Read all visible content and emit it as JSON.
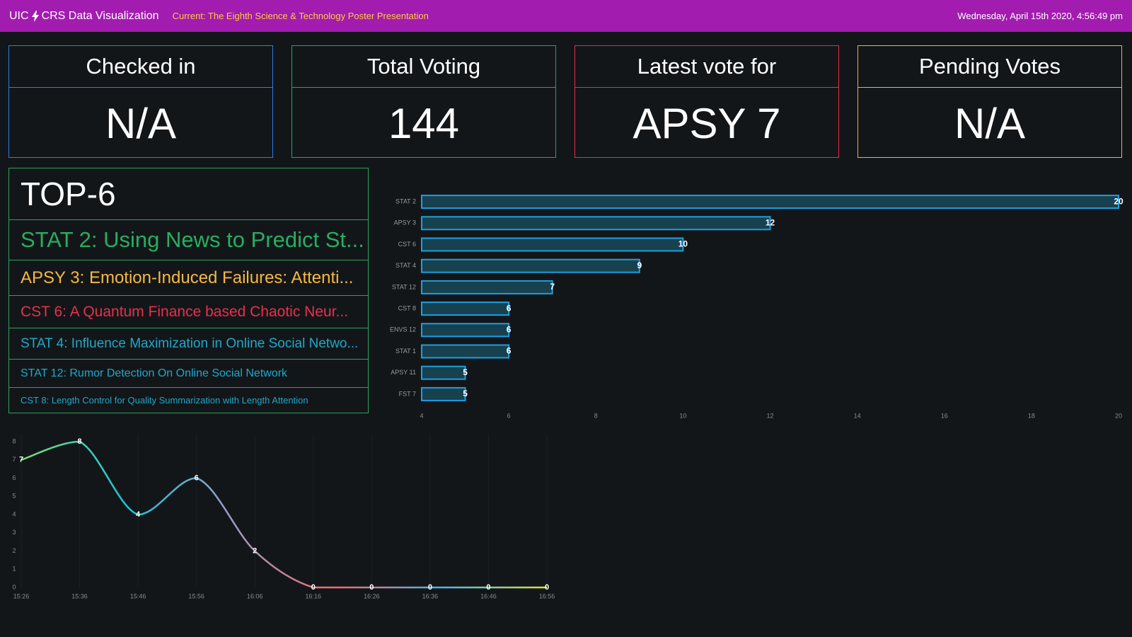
{
  "header": {
    "brand": "UIC",
    "app_name": "CRS Data Visualization",
    "current": "Current: The Eighth Science & Technology Poster Presentation",
    "datetime": "Wednesday, April 15th 2020, 4:56:49 pm"
  },
  "cards": [
    {
      "title": "Checked in",
      "value": "N/A",
      "color": "#2f7de1"
    },
    {
      "title": "Total Voting",
      "value": "144",
      "color": "#2aa35a"
    },
    {
      "title": "Latest vote for",
      "value": "APSY 7",
      "color": "#e0304a"
    },
    {
      "title": "Pending Votes",
      "value": "N/A",
      "color": "#f0b040"
    }
  ],
  "top_list": {
    "title": "TOP-6",
    "border_color": "#2aa35a",
    "items": [
      {
        "text": "STAT 2: Using News to Predict St...",
        "color": "#27ae60"
      },
      {
        "text": "APSY 3: Emotion-Induced Failures: Attenti...",
        "color": "#f5b942"
      },
      {
        "text": "CST 6: A Quantum Finance based Chaotic Neur...",
        "color": "#e8304c"
      },
      {
        "text": "STAT 4: Influence Maximization in Online Social Netwo...",
        "color": "#20a8c8"
      },
      {
        "text": "STAT 12: Rumor Detection On Online Social Network",
        "color": "#20a8c8"
      },
      {
        "text": "CST 8: Length Control for Quality Summarization with Length Attention",
        "color": "#20a8c8"
      }
    ]
  },
  "chart_data": [
    {
      "type": "bar",
      "orientation": "horizontal",
      "categories": [
        "STAT 2",
        "APSY 3",
        "CST 6",
        "STAT 4",
        "STAT 12",
        "CST 8",
        "ENVS 12",
        "STAT 1",
        "APSY 11",
        "FST 7"
      ],
      "values": [
        20,
        12,
        10,
        9,
        7,
        6,
        6,
        6,
        5,
        5
      ],
      "color": "#17414f",
      "edge_color": "#1e9ee0",
      "xlim": [
        4,
        20
      ],
      "xticks": [
        4,
        6,
        8,
        10,
        12,
        14,
        16,
        18,
        20
      ]
    },
    {
      "type": "line",
      "categories": [
        "15:26",
        "15:36",
        "15:46",
        "15:56",
        "16:06",
        "16:16",
        "16:26",
        "16:36",
        "16:46",
        "16:56"
      ],
      "values": [
        7,
        8,
        4,
        6,
        2,
        0,
        0,
        0,
        0,
        0
      ],
      "gradient_colors": [
        "#7be07a",
        "#1cc6d8",
        "#9a9ac0",
        "#f06a6a",
        "#4fb4e8",
        "#d8e040"
      ],
      "ylim": [
        0,
        8
      ],
      "yticks": [
        0,
        1,
        2,
        3,
        4,
        5,
        6,
        7,
        8
      ]
    }
  ]
}
